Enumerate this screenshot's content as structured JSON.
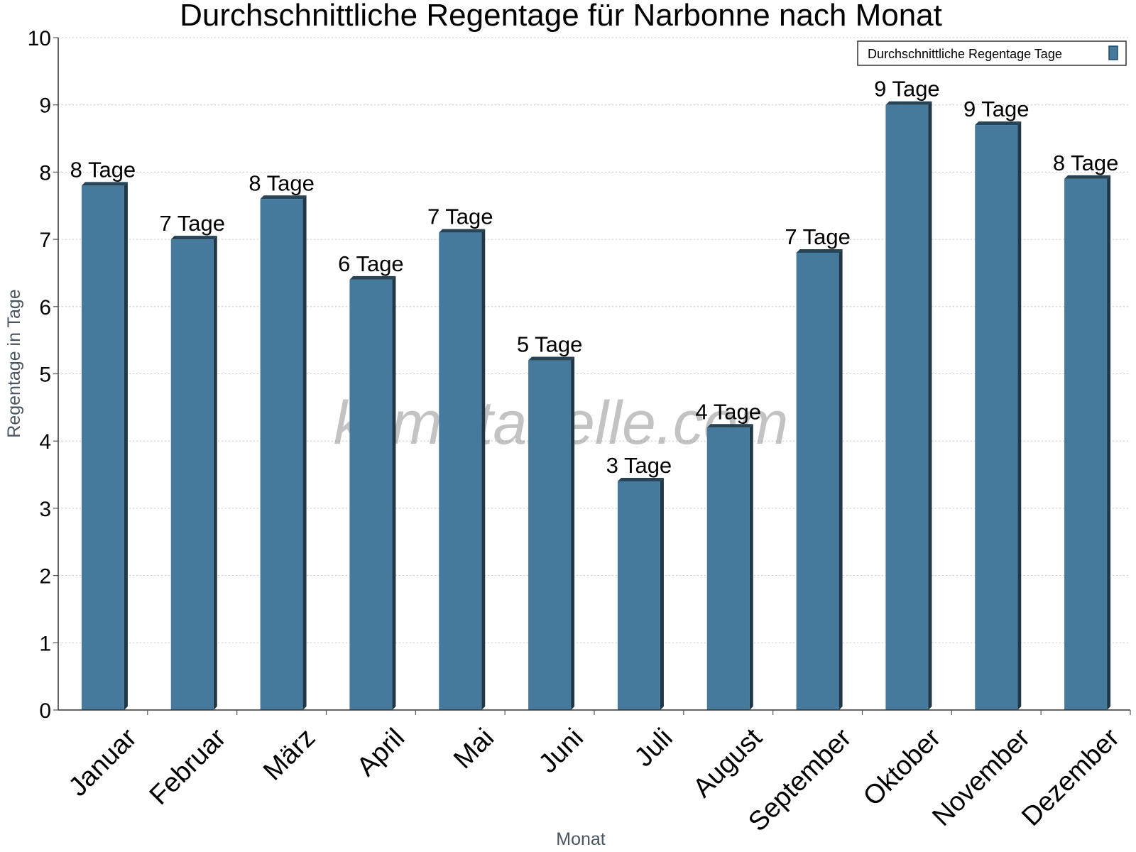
{
  "chart_data": {
    "type": "bar",
    "title": "Durchschnittliche Regentage für Narbonne nach Monat",
    "xlabel": "Monat",
    "ylabel": "Regentage in Tage",
    "ylim": [
      0,
      10
    ],
    "yticks": [
      "0",
      "1",
      "2",
      "3",
      "4",
      "5",
      "6",
      "7",
      "8",
      "9",
      "10"
    ],
    "grid": true,
    "legend_position": "top-right",
    "categories": [
      "Januar",
      "Februar",
      "März",
      "April",
      "Mai",
      "Juni",
      "Juli",
      "August",
      "September",
      "Oktober",
      "November",
      "Dezember"
    ],
    "series": [
      {
        "name": "Durchschnittliche Regentage Tage",
        "color": "#467a9c",
        "values": [
          7.8,
          7.0,
          7.6,
          6.4,
          7.1,
          5.2,
          3.4,
          4.2,
          6.8,
          9.0,
          8.7,
          7.9
        ],
        "data_labels": [
          "8 Tage",
          "7 Tage",
          "8 Tage",
          "6 Tage",
          "7 Tage",
          "5 Tage",
          "3 Tage",
          "4 Tage",
          "7 Tage",
          "9 Tage",
          "9 Tage",
          "8 Tage"
        ]
      }
    ],
    "watermark": "klimatabelle.com"
  }
}
